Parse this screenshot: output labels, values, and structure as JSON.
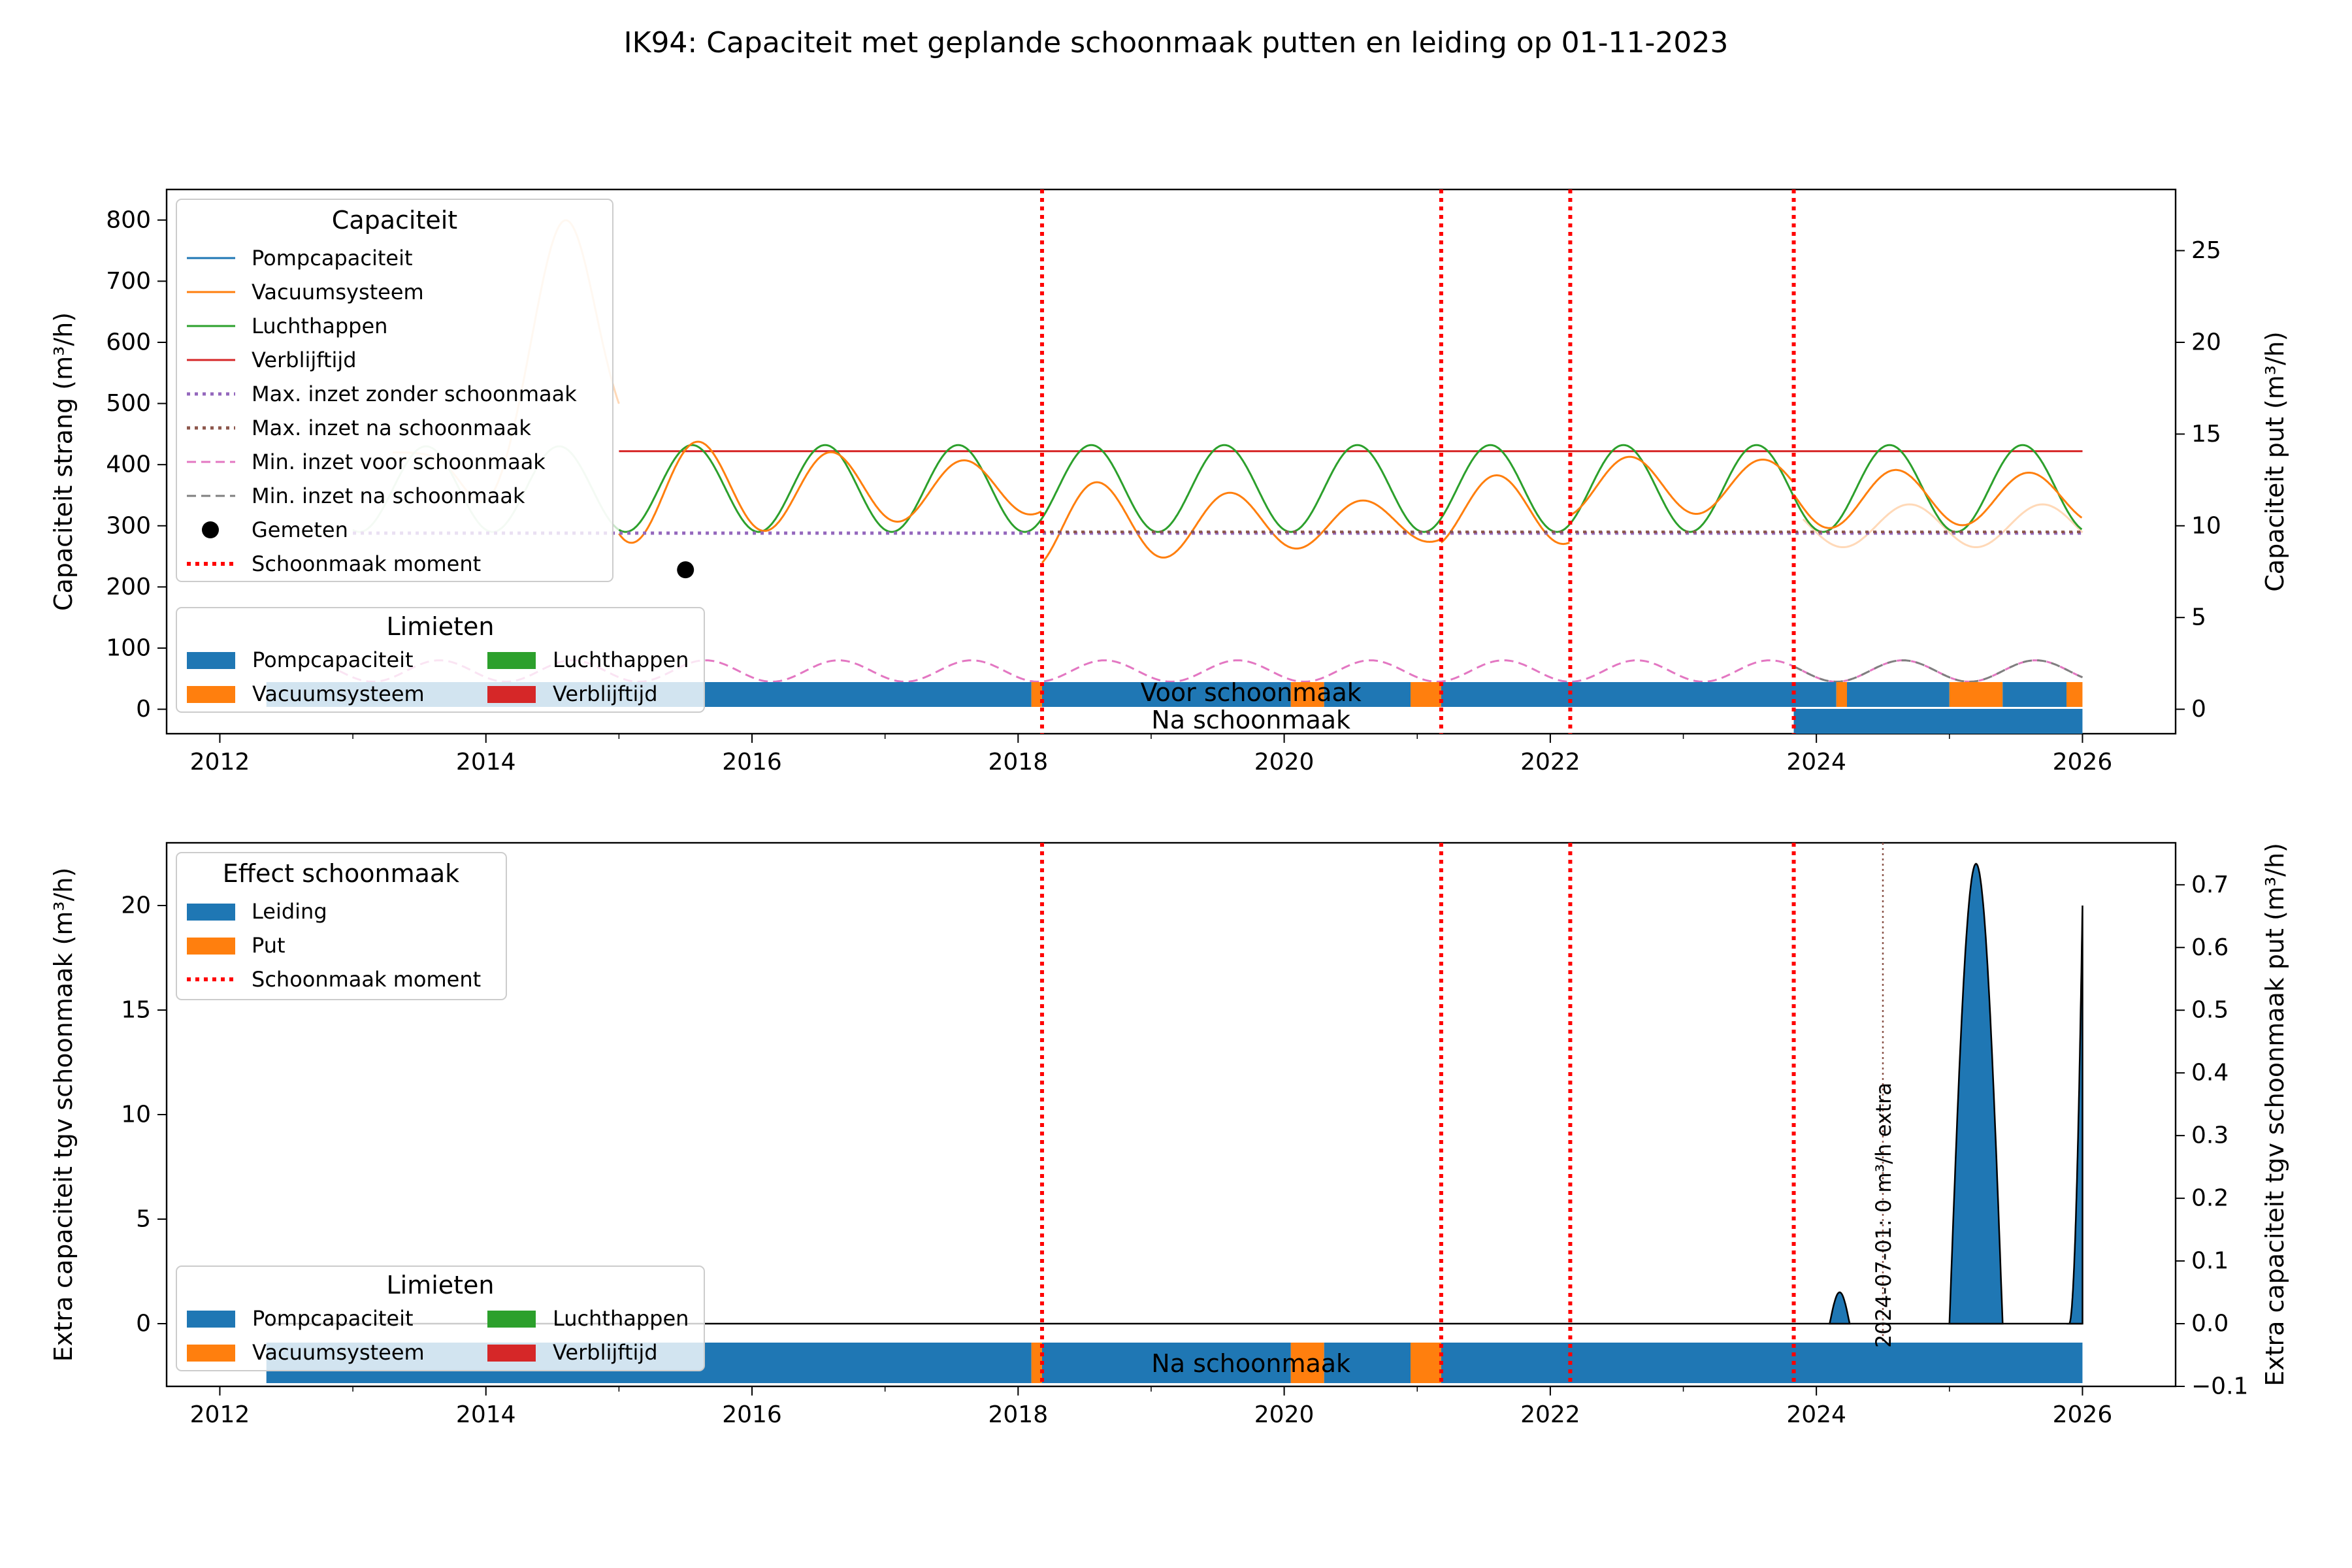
{
  "title": "IK94: Capaciteit met geplande schoonmaak putten en leiding op 01-11-2023",
  "colors": {
    "blue": "#1f77b4",
    "orange": "#ff7f0e",
    "green": "#2ca02c",
    "red": "#d62728",
    "purple": "#9467bd",
    "brown": "#8c564b",
    "pink": "#e377c2",
    "gray": "#7f7f7f",
    "cleaning": "#ff0000",
    "light_blue": "#cfe0ee",
    "light_orange": "#ffd9b8",
    "light_green": "#c9e7c9"
  },
  "chart_data": [
    {
      "type": "line",
      "ylabel_left": "Capaciteit strang (m³/h)",
      "ylabel_right": "Capaciteit put (m³/h)",
      "xlim": [
        2011.6,
        2026.7
      ],
      "ylim_left": [
        -40,
        850
      ],
      "ylim_right": [
        -1.333,
        28.333
      ],
      "x_ticks": [
        "2012",
        "2014",
        "2016",
        "2018",
        "2020",
        "2022",
        "2024",
        "2026"
      ],
      "y_ticks_left": [
        "0",
        "100",
        "200",
        "300",
        "400",
        "500",
        "600",
        "700",
        "800"
      ],
      "y_ticks_right": [
        "0",
        "5",
        "10",
        "15",
        "20",
        "25"
      ],
      "grid": false,
      "cleaning_moments": [
        2018.18,
        2021.18,
        2022.15,
        2023.83
      ],
      "legend_capaciteit": {
        "title": "Capaciteit",
        "placement": "top-left",
        "entries": [
          "Pompcapaciteit",
          "Vacuumsysteem",
          "Luchthappen",
          "Verblijftijd",
          "Max. inzet zonder schoonmaak",
          "Max. inzet na schoonmaak",
          "Min. inzet voor schoonmaak",
          "Min. inzet na schoonmaak",
          "Gemeten",
          "Schoonmaak moment"
        ]
      },
      "legend_limieten": {
        "title": "Limieten",
        "entries": [
          "Pompcapaciteit",
          "Luchthappen",
          "Vacuumsysteem",
          "Verblijftijd"
        ]
      },
      "series": [
        {
          "name": "Verblijftijd",
          "x": [
            2015.0,
            2026.0
          ],
          "y": [
            422,
            422
          ]
        },
        {
          "name": "Max. inzet zonder schoonmaak",
          "x": [
            2013.0,
            2026.0
          ],
          "y": [
            288,
            288
          ]
        },
        {
          "name": "Gemeten",
          "x": [
            2015.5
          ],
          "y": [
            228
          ]
        },
        {
          "name": "Luchthappen",
          "x_range": [
            2015.0,
            2026.0
          ],
          "period_years": 1.0,
          "min": 290,
          "max": 432,
          "peak_phase": 0.55
        },
        {
          "name": "Vacuumsysteem",
          "segments": [
            {
              "x_range": [
                2015.0,
                2018.18
              ],
              "base": 395,
              "amp": 90,
              "decay": 0.25
            },
            {
              "x_range": [
                2018.18,
                2021.18
              ],
              "base": 340,
              "amp": 75,
              "decay": 0.3
            },
            {
              "x_range": [
                2021.18,
                2022.15
              ],
              "base": 360,
              "amp": 60,
              "decay": 0.1
            },
            {
              "x_range": [
                2022.15,
                2023.83
              ],
              "base": 400,
              "amp": 50,
              "decay": 0.1
            },
            {
              "x_range": [
                2023.83,
                2026.0
              ],
              "base": 380,
              "amp": 50,
              "decay": 0.1
            }
          ]
        },
        {
          "name": "Min. inzet voor schoonmaak",
          "x_range": [
            2012.9,
            2026.0
          ],
          "period_years": 1.0,
          "min": 45,
          "max": 80
        }
      ],
      "limits_bars": [
        {
          "label": "Voor schoonmaak",
          "intervals": [
            {
              "x": [
                2012.35,
                2018.1
              ],
              "limit": "Pompcapaciteit"
            },
            {
              "x": [
                2018.1,
                2018.18
              ],
              "limit": "Vacuumsysteem"
            },
            {
              "x": [
                2018.18,
                2020.05
              ],
              "limit": "Pompcapaciteit"
            },
            {
              "x": [
                2020.05,
                2020.3
              ],
              "limit": "Vacuumsysteem"
            },
            {
              "x": [
                2020.3,
                2020.95
              ],
              "limit": "Pompcapaciteit"
            },
            {
              "x": [
                2020.95,
                2021.18
              ],
              "limit": "Vacuumsysteem"
            },
            {
              "x": [
                2021.18,
                2024.15
              ],
              "limit": "Pompcapaciteit"
            },
            {
              "x": [
                2024.15,
                2024.23
              ],
              "limit": "Vacuumsysteem"
            },
            {
              "x": [
                2024.23,
                2025.0
              ],
              "limit": "Pompcapaciteit"
            },
            {
              "x": [
                2025.0,
                2025.4
              ],
              "limit": "Vacuumsysteem"
            },
            {
              "x": [
                2025.4,
                2025.88
              ],
              "limit": "Pompcapaciteit"
            },
            {
              "x": [
                2025.88,
                2026.0
              ],
              "limit": "Vacuumsysteem"
            }
          ]
        },
        {
          "label": "Na schoonmaak",
          "intervals": [
            {
              "x": [
                2023.83,
                2026.0
              ],
              "limit": "Pompcapaciteit"
            }
          ]
        }
      ]
    },
    {
      "type": "area",
      "ylabel_left": "Extra capaciteit tgv schoonmaak (m³/h)",
      "ylabel_right": "Extra capaciteit tgv schoonmaak put (m³/h)",
      "xlim": [
        2011.6,
        2026.7
      ],
      "ylim_left": [
        -3,
        23
      ],
      "ylim_right": [
        -0.1,
        0.767
      ],
      "x_ticks": [
        "2012",
        "2014",
        "2016",
        "2018",
        "2020",
        "2022",
        "2024",
        "2026"
      ],
      "y_ticks_left": [
        "0",
        "5",
        "10",
        "15",
        "20"
      ],
      "y_ticks_right": [
        "−0.1",
        "0.0",
        "0.1",
        "0.2",
        "0.3",
        "0.4",
        "0.5",
        "0.6",
        "0.7"
      ],
      "grid": false,
      "cleaning_moments": [
        2018.18,
        2021.18,
        2022.15,
        2023.83
      ],
      "annotation": {
        "x": 2024.5,
        "text": "2024-07-01: 0 m³/h extra"
      },
      "legend_effect": {
        "title": "Effect schoonmaak",
        "placement": "top-left",
        "entries": [
          "Leiding",
          "Put",
          "Schoonmaak moment"
        ]
      },
      "legend_limieten": {
        "title": "Limieten",
        "entries": [
          "Pompcapaciteit",
          "Luchthappen",
          "Vacuumsysteem",
          "Verblijftijd"
        ]
      },
      "series": [
        {
          "name": "Leiding",
          "peaks": [
            {
              "x_range": [
                2024.1,
                2024.25
              ],
              "peak": 1.5
            },
            {
              "x_range": [
                2025.0,
                2025.4
              ],
              "peak": 22.0
            },
            {
              "x_range": [
                2025.9,
                2026.0
              ],
              "peak": 20.0
            }
          ]
        }
      ],
      "limits_bars": [
        {
          "label": "Na schoonmaak",
          "intervals": [
            {
              "x": [
                2012.35,
                2018.1
              ],
              "limit": "Pompcapaciteit"
            },
            {
              "x": [
                2018.1,
                2018.18
              ],
              "limit": "Vacuumsysteem"
            },
            {
              "x": [
                2018.18,
                2020.05
              ],
              "limit": "Pompcapaciteit"
            },
            {
              "x": [
                2020.05,
                2020.3
              ],
              "limit": "Vacuumsysteem"
            },
            {
              "x": [
                2020.3,
                2020.95
              ],
              "limit": "Pompcapaciteit"
            },
            {
              "x": [
                2020.95,
                2021.18
              ],
              "limit": "Vacuumsysteem"
            },
            {
              "x": [
                2021.18,
                2026.0
              ],
              "limit": "Pompcapaciteit"
            }
          ]
        }
      ]
    }
  ]
}
